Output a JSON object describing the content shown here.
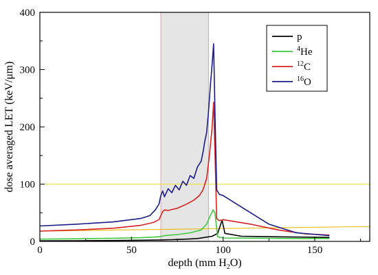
{
  "chart_data": {
    "type": "line",
    "xlabel": "depth (mm H2O)",
    "ylabel": "dose averaged LET (keV/μm)",
    "xlim": [
      0,
      180
    ],
    "ylim": [
      0,
      400
    ],
    "x_ticks": [
      "0",
      "50",
      "100",
      "150"
    ],
    "y_ticks": [
      "0",
      "100",
      "200",
      "300",
      "400"
    ],
    "x_tick_values": [
      0,
      50,
      100,
      150
    ],
    "y_tick_values": [
      0,
      100,
      200,
      300,
      400
    ],
    "legend_position": "top-right",
    "shaded_region": {
      "x": [
        66,
        92
      ],
      "color": "#dcdcdc"
    },
    "reference_lines": [
      {
        "type": "horizontal",
        "y": 100,
        "color": "#f2e24a"
      },
      {
        "type": "line",
        "x": [
          0,
          180
        ],
        "y": [
          18,
          26
        ],
        "color": "#e8c020"
      }
    ],
    "series": [
      {
        "name": "p",
        "color": "#000000",
        "x": [
          0,
          20,
          40,
          55,
          65,
          72,
          80,
          86,
          90,
          94,
          97,
          99,
          99.5,
          101,
          110,
          130,
          158
        ],
        "y": [
          1,
          1.2,
          1.5,
          2,
          2.5,
          3,
          4,
          5,
          7,
          9,
          14,
          33,
          36,
          14,
          9,
          8,
          7
        ]
      },
      {
        "name": "He",
        "sup": "4",
        "color": "#3ec93e",
        "x": [
          0,
          20,
          40,
          55,
          65,
          68,
          75,
          82,
          88,
          91,
          93,
          94.5,
          95.5,
          97,
          100,
          120,
          140,
          158
        ],
        "y": [
          4,
          4.5,
          5.5,
          6.5,
          8,
          10,
          12,
          15,
          20,
          30,
          45,
          55,
          50,
          8,
          6,
          5.5,
          5,
          5
        ]
      },
      {
        "name": "C",
        "sup": "12",
        "color": "#d82020",
        "x": [
          0,
          20,
          40,
          55,
          62,
          65,
          67,
          68,
          70,
          75,
          80,
          84,
          87,
          89,
          91,
          92.5,
          94,
          94.8,
          95.6,
          96.5,
          98,
          100,
          115,
          130,
          145,
          158
        ],
        "y": [
          18,
          20,
          23,
          28,
          33,
          38,
          52,
          55,
          54,
          58,
          65,
          72,
          80,
          90,
          110,
          150,
          200,
          243,
          150,
          40,
          36,
          38,
          30,
          20,
          13,
          11
        ]
      },
      {
        "name": "O",
        "sup": "16",
        "color": "#1a1a8c",
        "x": [
          0,
          20,
          40,
          55,
          60,
          63,
          65,
          66,
          67,
          68,
          70,
          72,
          74,
          76,
          78,
          80,
          82,
          84,
          86,
          88,
          89,
          90,
          91,
          92,
          93,
          94,
          94.8,
          95.6,
          96.5,
          98,
          100,
          105,
          115,
          125,
          140,
          158
        ],
        "y": [
          27,
          30,
          34,
          40,
          45,
          55,
          65,
          80,
          88,
          78,
          92,
          85,
          98,
          90,
          105,
          98,
          115,
          110,
          130,
          140,
          155,
          175,
          190,
          225,
          270,
          310,
          345,
          220,
          90,
          82,
          80,
          70,
          50,
          30,
          15,
          10
        ]
      }
    ]
  }
}
